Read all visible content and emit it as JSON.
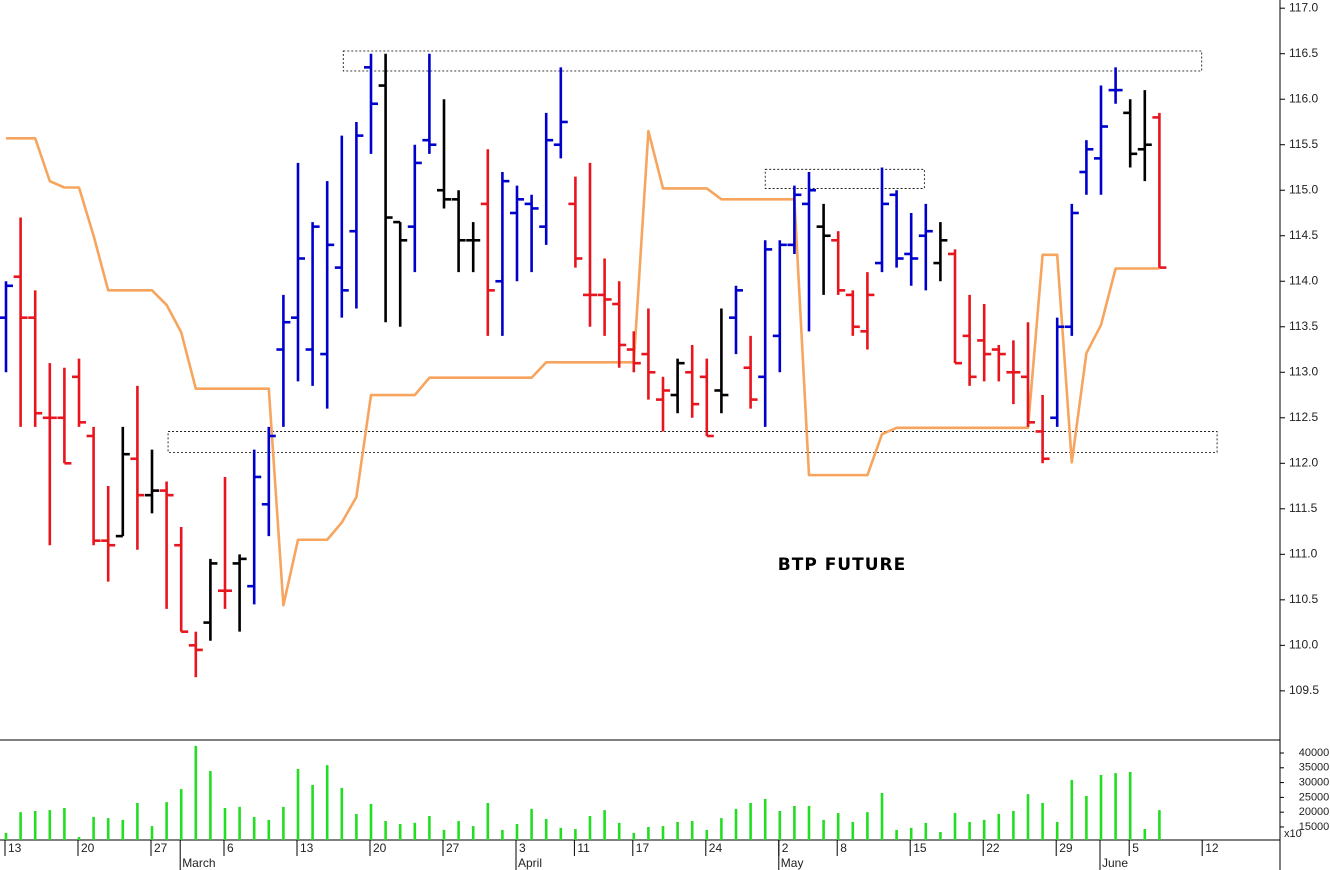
{
  "chart_data": [
    {
      "type": "ohlc",
      "annotation": "BTP FUTURE",
      "categories": [
        "13",
        null,
        null,
        null,
        null,
        "20",
        null,
        null,
        null,
        null,
        "27",
        null,
        null,
        null,
        null,
        "6",
        null,
        null,
        null,
        null,
        "13",
        null,
        null,
        null,
        null,
        "20",
        null,
        null,
        null,
        null,
        "27",
        null,
        null,
        null,
        null,
        "3",
        null,
        null,
        null,
        "11",
        null,
        null,
        null,
        "17",
        null,
        null,
        null,
        null,
        "24",
        null,
        null,
        null,
        null,
        "2",
        null,
        null,
        null,
        "8",
        null,
        null,
        null,
        null,
        "15",
        null,
        null,
        null,
        null,
        "22",
        null,
        null,
        null,
        null,
        "29",
        null,
        null,
        null,
        null,
        "5",
        null,
        null,
        null,
        null,
        "12",
        null,
        null,
        null,
        null,
        null
      ],
      "months": [
        null,
        null,
        null,
        null,
        null,
        null,
        null,
        null,
        null,
        null,
        null,
        null,
        "March",
        null,
        null,
        null,
        null,
        null,
        null,
        null,
        null,
        null,
        null,
        null,
        null,
        null,
        null,
        null,
        null,
        null,
        null,
        null,
        null,
        null,
        null,
        "April",
        null,
        null,
        null,
        null,
        null,
        null,
        null,
        null,
        null,
        null,
        null,
        null,
        null,
        null,
        null,
        null,
        null,
        "May",
        null,
        null,
        null,
        null,
        null,
        null,
        null,
        null,
        null,
        null,
        null,
        null,
        null,
        null,
        null,
        null,
        null,
        null,
        null,
        null,
        null,
        "June",
        null,
        null,
        null,
        null,
        null,
        null,
        null,
        null,
        null,
        null,
        null,
        null
      ],
      "open": [
        113.6,
        114.05,
        113.6,
        112.5,
        112.5,
        112.95,
        112.3,
        111.15,
        111.2,
        112.05,
        111.65,
        111.7,
        111.1,
        110.0,
        110.25,
        110.6,
        110.9,
        110.65,
        111.55,
        113.25,
        113.6,
        113.25,
        113.2,
        114.15,
        114.55,
        116.35,
        116.15,
        114.65,
        114.6,
        115.55,
        115.0,
        114.9,
        114.45,
        114.85,
        114.0,
        114.75,
        114.85,
        114.6,
        115.5,
        114.85,
        113.85,
        113.85,
        113.75,
        113.25,
        113.2,
        112.7,
        112.75,
        113.0,
        112.95,
        112.8,
        113.6,
        113.05,
        112.95,
        113.4,
        114.4,
        114.85,
        114.6,
        114.45,
        113.85,
        113.45,
        114.2,
        114.95,
        114.3,
        114.5,
        114.2,
        114.3,
        113.4,
        113.35,
        113.25,
        113.0,
        112.95,
        112.35,
        112.5,
        113.5,
        115.2,
        115.35,
        116.1,
        115.85,
        115.45,
        115.8,
        null,
        null,
        null,
        null,
        null,
        null,
        null,
        null
      ],
      "high": [
        114.0,
        114.7,
        113.9,
        113.1,
        113.05,
        113.15,
        112.4,
        111.75,
        112.4,
        112.85,
        112.15,
        111.8,
        111.3,
        110.15,
        110.95,
        111.85,
        111.0,
        112.15,
        112.4,
        113.85,
        115.3,
        114.65,
        115.1,
        115.6,
        115.75,
        116.5,
        116.5,
        114.65,
        115.5,
        116.5,
        116.0,
        115.0,
        114.65,
        115.45,
        115.2,
        115.05,
        114.95,
        115.85,
        116.35,
        115.15,
        115.3,
        114.25,
        114.0,
        113.45,
        113.7,
        112.95,
        113.15,
        113.3,
        113.15,
        113.7,
        113.95,
        113.4,
        114.45,
        114.45,
        115.05,
        115.2,
        114.85,
        114.55,
        113.9,
        114.1,
        115.25,
        115.0,
        114.75,
        114.85,
        114.65,
        114.35,
        113.85,
        113.75,
        113.3,
        113.35,
        113.55,
        112.75,
        113.6,
        114.85,
        115.55,
        116.15,
        116.35,
        116.0,
        116.1,
        115.85,
        null,
        null,
        null,
        null,
        null,
        null,
        null,
        null
      ],
      "low": [
        113.0,
        112.4,
        112.4,
        111.1,
        112.0,
        112.4,
        111.1,
        110.7,
        111.2,
        111.05,
        111.45,
        110.4,
        110.15,
        109.65,
        110.05,
        110.4,
        110.15,
        110.45,
        111.2,
        112.4,
        112.9,
        112.85,
        112.6,
        113.6,
        113.7,
        115.4,
        113.55,
        113.5,
        114.1,
        115.4,
        114.8,
        114.1,
        114.1,
        113.4,
        113.4,
        114.0,
        114.1,
        114.4,
        115.35,
        114.15,
        113.5,
        113.4,
        113.05,
        113.0,
        112.7,
        112.35,
        112.55,
        112.5,
        112.3,
        112.55,
        113.2,
        112.6,
        112.4,
        113.0,
        114.3,
        113.45,
        113.85,
        113.85,
        113.4,
        113.25,
        114.1,
        114.15,
        113.95,
        113.9,
        114.0,
        113.1,
        112.85,
        112.9,
        112.9,
        112.65,
        112.4,
        112.0,
        112.4,
        113.4,
        114.95,
        114.95,
        115.95,
        115.25,
        115.1,
        114.15,
        null,
        null,
        null,
        null,
        null,
        null,
        null,
        null
      ],
      "close": [
        113.95,
        113.6,
        112.55,
        112.5,
        112.0,
        112.45,
        111.15,
        111.1,
        112.1,
        111.65,
        111.7,
        111.65,
        110.15,
        109.95,
        110.9,
        110.6,
        110.95,
        111.85,
        112.3,
        113.55,
        114.25,
        114.6,
        114.4,
        113.9,
        115.6,
        115.95,
        114.7,
        114.45,
        115.3,
        115.5,
        114.9,
        114.45,
        114.45,
        113.9,
        115.1,
        114.9,
        114.8,
        115.55,
        115.75,
        114.25,
        113.85,
        113.8,
        113.3,
        113.1,
        113.0,
        112.8,
        113.1,
        112.65,
        112.3,
        112.75,
        113.9,
        112.7,
        114.35,
        114.4,
        114.95,
        115.0,
        114.5,
        113.9,
        113.5,
        113.85,
        114.85,
        114.25,
        114.25,
        114.55,
        114.45,
        113.1,
        112.95,
        113.2,
        113.2,
        113.0,
        112.45,
        112.05,
        113.5,
        114.75,
        115.45,
        115.7,
        116.1,
        115.4,
        115.5,
        114.15,
        null,
        null,
        null,
        null,
        null,
        null,
        null,
        null
      ],
      "colors": [
        "#0000cc",
        "#e8141e",
        "#e8141e",
        "#e8141e",
        "#e8141e",
        "#e8141e",
        "#e8141e",
        "#e8141e",
        "#000000",
        "#e8141e",
        "#000000",
        "#e8141e",
        "#e8141e",
        "#e8141e",
        "#000000",
        "#e8141e",
        "#000000",
        "#0000cc",
        "#0000cc",
        "#0000cc",
        "#0000cc",
        "#0000cc",
        "#0000cc",
        "#0000cc",
        "#0000cc",
        "#0000cc",
        "#000000",
        "#000000",
        "#0000cc",
        "#0000cc",
        "#000000",
        "#000000",
        "#000000",
        "#e8141e",
        "#0000cc",
        "#0000cc",
        "#0000cc",
        "#0000cc",
        "#0000cc",
        "#e8141e",
        "#e8141e",
        "#e8141e",
        "#e8141e",
        "#e8141e",
        "#e8141e",
        "#e8141e",
        "#000000",
        "#e8141e",
        "#e8141e",
        "#000000",
        "#0000cc",
        "#e8141e",
        "#0000cc",
        "#0000cc",
        "#0000cc",
        "#0000cc",
        "#000000",
        "#e8141e",
        "#e8141e",
        "#e8141e",
        "#0000cc",
        "#0000cc",
        "#0000cc",
        "#0000cc",
        "#000000",
        "#e8141e",
        "#e8141e",
        "#e8141e",
        "#e8141e",
        "#e8141e",
        "#e8141e",
        "#e8141e",
        "#0000cc",
        "#0000cc",
        "#0000cc",
        "#0000cc",
        "#0000cc",
        "#000000",
        "#000000",
        "#e8141e",
        null,
        null,
        null,
        null,
        null,
        null,
        null,
        null
      ],
      "line": {
        "color": "#f7a55e",
        "values": [
          115.57,
          115.57,
          115.57,
          115.1,
          115.03,
          115.03,
          114.5,
          113.9,
          113.9,
          113.9,
          113.9,
          113.74,
          113.44,
          112.82,
          112.82,
          112.82,
          112.82,
          112.82,
          112.82,
          110.44,
          111.16,
          111.16,
          111.16,
          111.35,
          111.63,
          112.75,
          112.75,
          112.75,
          112.75,
          112.94,
          112.94,
          112.94,
          112.94,
          112.94,
          112.94,
          112.94,
          112.94,
          113.11,
          113.11,
          113.11,
          113.11,
          113.11,
          113.11,
          113.11,
          115.65,
          115.02,
          115.02,
          115.02,
          115.02,
          114.9,
          114.9,
          114.9,
          114.9,
          114.9,
          114.9,
          111.87,
          111.87,
          111.87,
          111.87,
          111.87,
          112.32,
          112.39,
          112.39,
          112.39,
          112.39,
          112.39,
          112.39,
          112.39,
          112.39,
          112.39,
          112.39,
          114.29,
          114.29,
          112.01,
          113.21,
          113.52,
          114.14,
          114.14,
          114.14,
          114.14,
          null,
          null,
          null,
          null,
          null,
          null,
          null,
          null
        ]
      },
      "zones": [
        {
          "start": 23.1,
          "end": 81.9,
          "low": 116.31,
          "high": 116.53
        },
        {
          "start": 52.0,
          "end": 62.9,
          "low": 115.02,
          "high": 115.23
        },
        {
          "start": 11.1,
          "end": 82.95,
          "low": 112.12,
          "high": 112.35
        }
      ],
      "ylim": [
        108.96,
        117.09
      ],
      "yticks": [
        109.5,
        {
          "value": 110,
          "label": "110.0"
        },
        110.5,
        {
          "value": 111,
          "label": "111.0"
        },
        111.5,
        {
          "value": 112,
          "label": "112.0"
        },
        112.5,
        {
          "value": 113,
          "label": "113.0"
        },
        113.5,
        {
          "value": 114,
          "label": "114.0"
        },
        114.5,
        {
          "value": 115,
          "label": "115.0"
        },
        115.5,
        {
          "value": 116,
          "label": "116.0"
        },
        116.5,
        {
          "value": 117,
          "label": "117.0"
        }
      ]
    },
    {
      "type": "bar",
      "color": "#22dd22",
      "unit_label": "x10",
      "values": [
        13000,
        20000,
        20400,
        20700,
        21400,
        11600,
        18400,
        18000,
        17400,
        23100,
        15300,
        23400,
        27800,
        42400,
        33900,
        21400,
        21800,
        18400,
        17400,
        21800,
        34600,
        29200,
        35900,
        28200,
        19400,
        22800,
        17000,
        16000,
        16400,
        18700,
        14000,
        17000,
        15300,
        23100,
        14000,
        16000,
        21100,
        17700,
        14700,
        14300,
        18700,
        20700,
        16400,
        13000,
        15000,
        15300,
        16700,
        17000,
        14000,
        18000,
        21100,
        23100,
        24500,
        20400,
        22100,
        22100,
        17400,
        19700,
        16700,
        20000,
        26500,
        14000,
        14700,
        16400,
        13300,
        19700,
        16700,
        17400,
        19400,
        20400,
        26100,
        23100,
        16700,
        30900,
        25500,
        32600,
        33200,
        33600,
        14300,
        20700,
        null,
        null,
        null,
        null,
        null,
        null,
        null,
        null
      ],
      "ylim": [
        10600,
        44050
      ],
      "yticks": [
        15000,
        20000,
        25000,
        30000,
        35000,
        40000
      ]
    }
  ]
}
